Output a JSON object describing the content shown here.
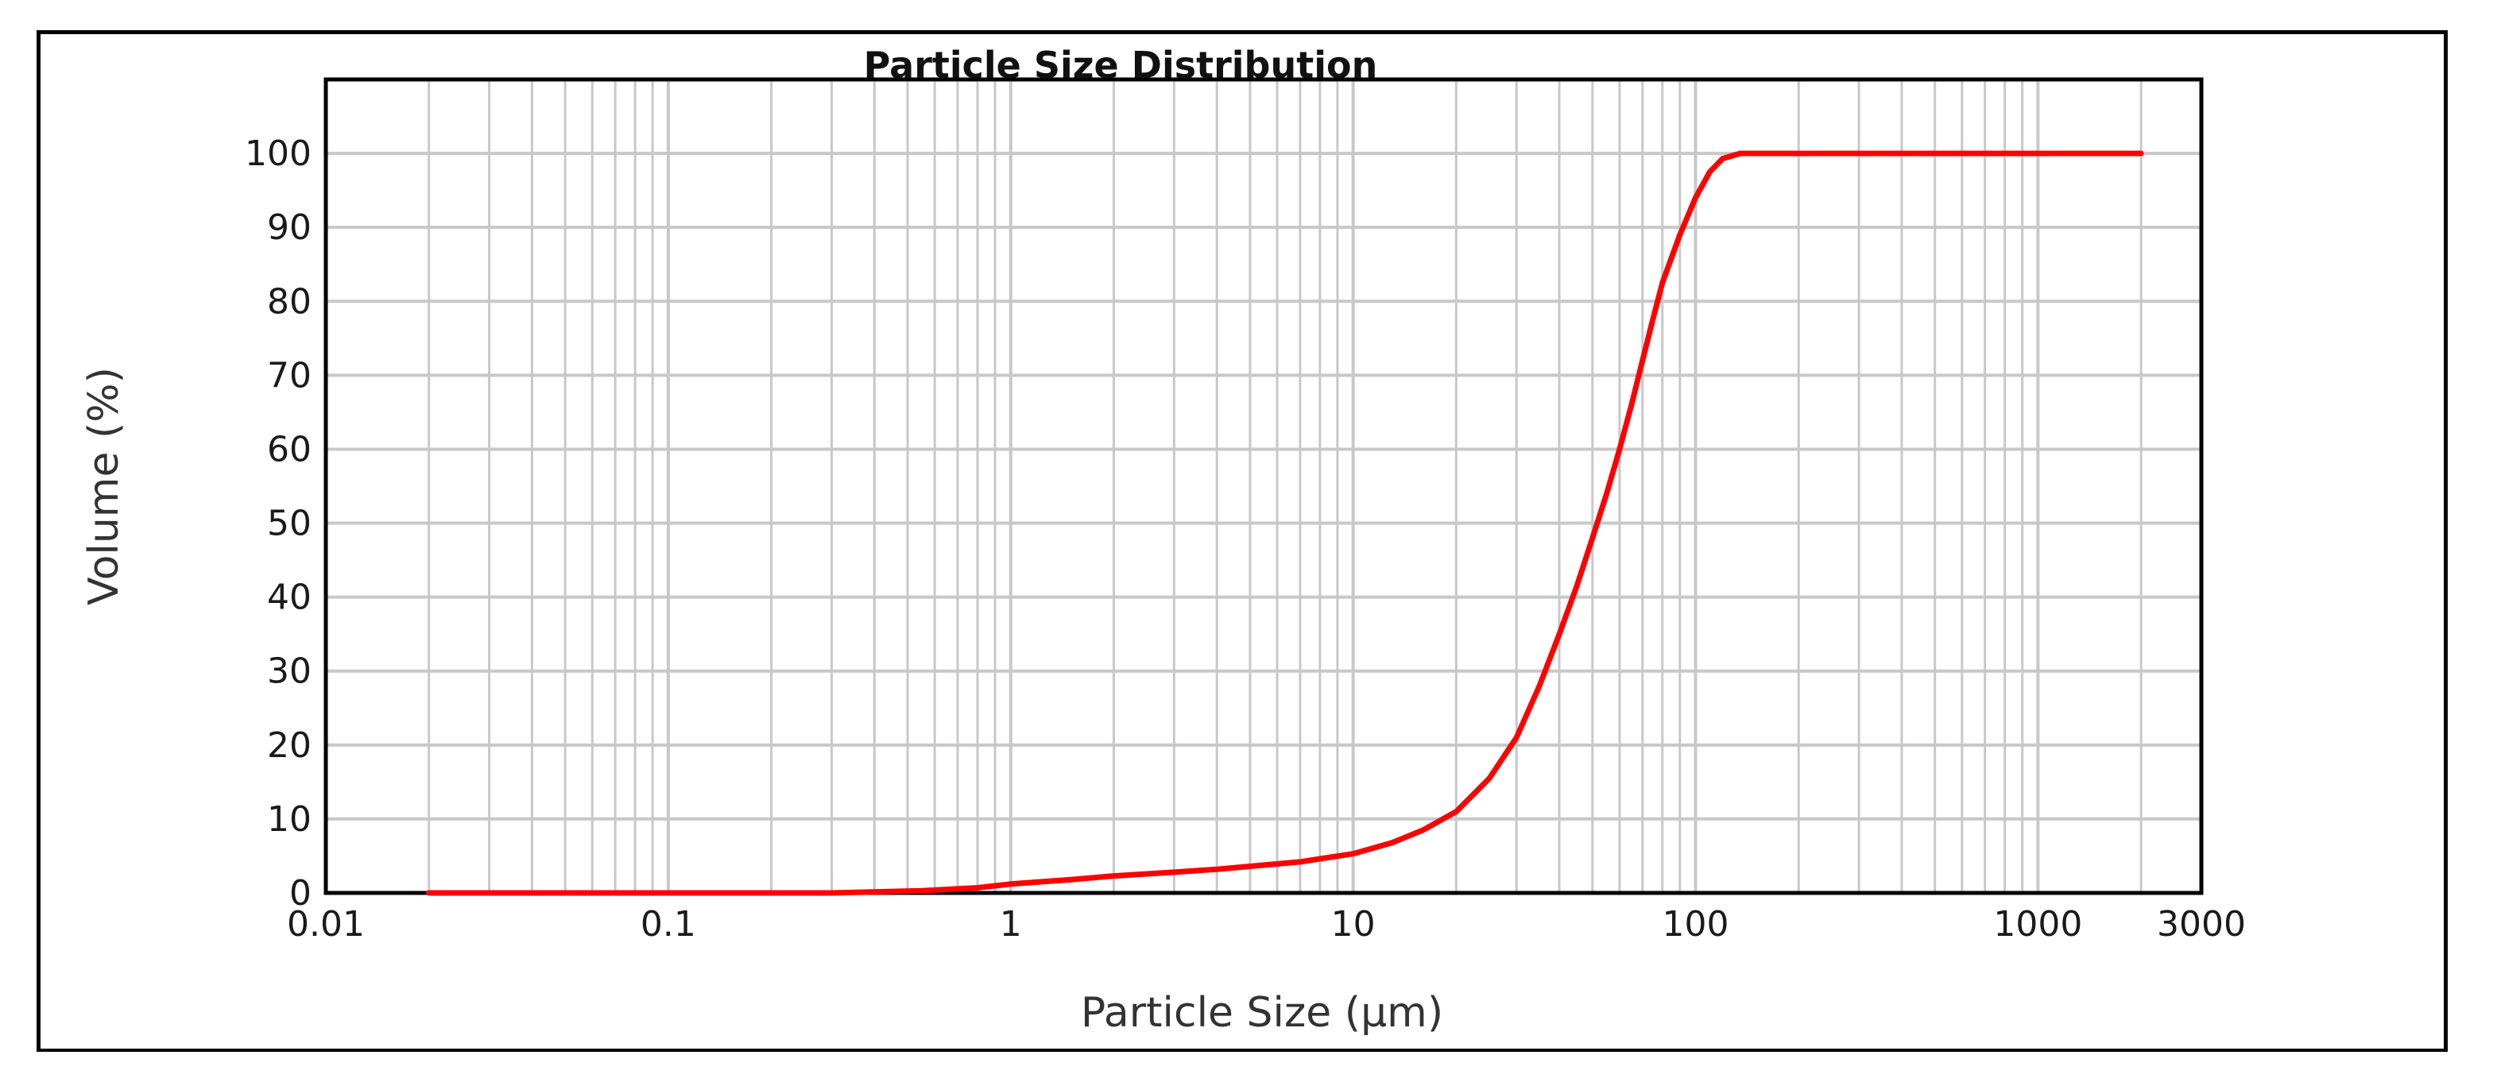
{
  "chart_data": {
    "type": "line",
    "title": "Particle Size Distribution",
    "xlabel": "Particle Size (μm)",
    "ylabel": "Volume (%)",
    "x_scale": "log",
    "xlim": [
      0.01,
      3000
    ],
    "ylim": [
      0,
      110
    ],
    "grid": true,
    "x_ticks": [
      {
        "value": 0.01,
        "label": "0.01"
      },
      {
        "value": 0.1,
        "label": "0.1"
      },
      {
        "value": 1,
        "label": "1"
      },
      {
        "value": 10,
        "label": "10"
      },
      {
        "value": 100,
        "label": "100"
      },
      {
        "value": 1000,
        "label": "1000"
      },
      {
        "value": 3000,
        "label": "3000"
      }
    ],
    "y_ticks": [
      {
        "value": 0,
        "label": "0"
      },
      {
        "value": 10,
        "label": "10"
      },
      {
        "value": 20,
        "label": "20"
      },
      {
        "value": 30,
        "label": "30"
      },
      {
        "value": 40,
        "label": "40"
      },
      {
        "value": 50,
        "label": "50"
      },
      {
        "value": 60,
        "label": "60"
      },
      {
        "value": 70,
        "label": "70"
      },
      {
        "value": 80,
        "label": "80"
      },
      {
        "value": 90,
        "label": "90"
      },
      {
        "value": 100,
        "label": "100"
      }
    ],
    "series": [
      {
        "color": "#ff0000",
        "points": [
          [
            0.02,
            0
          ],
          [
            0.1,
            0
          ],
          [
            0.3,
            0
          ],
          [
            0.55,
            0.3
          ],
          [
            0.8,
            0.7
          ],
          [
            1,
            1.2
          ],
          [
            1.5,
            1.8
          ],
          [
            2,
            2.3
          ],
          [
            3,
            2.8
          ],
          [
            4,
            3.2
          ],
          [
            5,
            3.6
          ],
          [
            7,
            4.2
          ],
          [
            10,
            5.3
          ],
          [
            13,
            6.8
          ],
          [
            16,
            8.5
          ],
          [
            20,
            11
          ],
          [
            25,
            15.5
          ],
          [
            30,
            21
          ],
          [
            35,
            28
          ],
          [
            40,
            35
          ],
          [
            45,
            41.5
          ],
          [
            50,
            48
          ],
          [
            55,
            54
          ],
          [
            60,
            60
          ],
          [
            65,
            66
          ],
          [
            70,
            72
          ],
          [
            75,
            77.5
          ],
          [
            80,
            82.5
          ],
          [
            90,
            89
          ],
          [
            100,
            94
          ],
          [
            110,
            97.5
          ],
          [
            120,
            99.3
          ],
          [
            135,
            100
          ],
          [
            500,
            100
          ],
          [
            2000,
            100
          ]
        ]
      }
    ]
  }
}
